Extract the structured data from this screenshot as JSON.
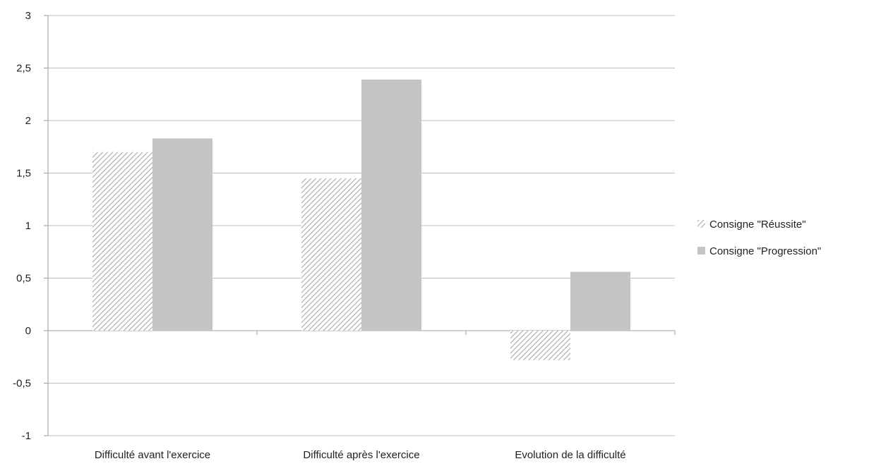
{
  "chart_data": {
    "type": "bar",
    "categories": [
      "Difficulté avant l'exercice",
      "Difficulté après l'exercice",
      "Evolution de la difficulté"
    ],
    "series": [
      {
        "name": "Consigne \"Réussite\"",
        "values": [
          1.7,
          1.45,
          -0.28
        ],
        "pattern": "hatched",
        "color": "#bdbdbd"
      },
      {
        "name": "Consigne \"Progression\"",
        "values": [
          1.83,
          2.39,
          0.56
        ],
        "pattern": "solid",
        "color": "#c4c4c4"
      }
    ],
    "y_ticks": [
      "3",
      "2,5",
      "2",
      "1,5",
      "1",
      "0,5",
      "0",
      "-0,5",
      "-1"
    ],
    "ylim": [
      -1,
      3
    ],
    "y_step": 0.5,
    "title": "",
    "xlabel": "",
    "ylabel": "",
    "grid": true,
    "legend_position": "right"
  }
}
